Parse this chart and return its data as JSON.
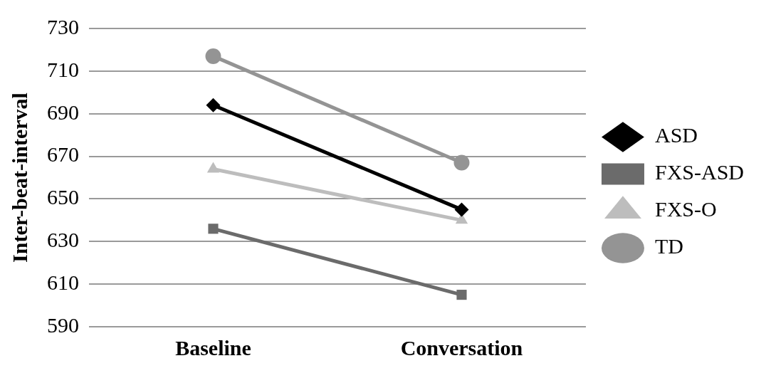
{
  "chart_data": {
    "type": "line",
    "ylabel": "Inter-beat-interval",
    "categories": [
      "Baseline",
      "Conversation"
    ],
    "series": [
      {
        "name": "ASD",
        "color": "#000000",
        "marker": "diamond",
        "values": [
          694,
          645
        ]
      },
      {
        "name": "FXS-ASD",
        "color": "#6b6b6b",
        "marker": "square",
        "values": [
          636,
          605
        ]
      },
      {
        "name": "FXS-O",
        "color": "#bdbdbd",
        "marker": "triangle",
        "values": [
          664,
          640
        ]
      },
      {
        "name": "TD",
        "color": "#949494",
        "marker": "circle",
        "values": [
          717,
          667
        ]
      }
    ],
    "ylim": [
      590,
      730
    ],
    "yticks": [
      590,
      610,
      630,
      650,
      670,
      690,
      710,
      730
    ],
    "grid": "y",
    "legend": "right",
    "line_style": "solid"
  }
}
